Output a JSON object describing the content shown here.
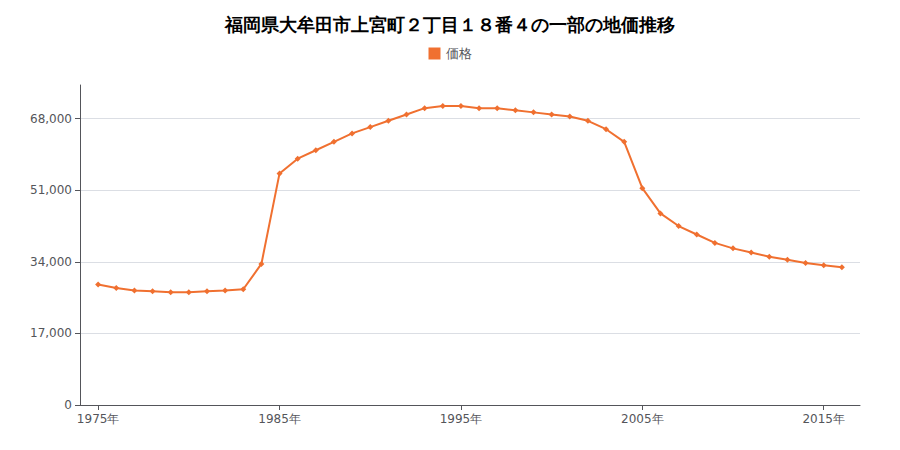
{
  "chart_data": {
    "type": "line",
    "title": "福岡県大牟田市上宮町２丁目１８番４の一部の地価推移",
    "x": [
      1975,
      1976,
      1977,
      1978,
      1979,
      1980,
      1981,
      1982,
      1983,
      1984,
      1985,
      1986,
      1987,
      1988,
      1989,
      1990,
      1991,
      1992,
      1993,
      1994,
      1995,
      1996,
      1997,
      1998,
      1999,
      2000,
      2001,
      2002,
      2003,
      2004,
      2005,
      2006,
      2007,
      2008,
      2009,
      2010,
      2011,
      2012,
      2013,
      2014,
      2015,
      2016
    ],
    "series": [
      {
        "name": "価格",
        "color": "#F07030",
        "marker": "diamond",
        "values": [
          28600,
          27800,
          27200,
          27000,
          26800,
          26800,
          27000,
          27200,
          27500,
          33500,
          55000,
          58500,
          60500,
          62500,
          64500,
          66000,
          67500,
          69000,
          70500,
          71000,
          71000,
          70500,
          70500,
          70000,
          69500,
          69000,
          68500,
          67500,
          65500,
          62500,
          51500,
          45500,
          42500,
          40500,
          38500,
          37200,
          36200,
          35200,
          34500,
          33700,
          33200,
          32700
        ]
      }
    ],
    "xlim": [
      1974.0,
      2017.0
    ],
    "xticks": [
      {
        "value": 1975,
        "label": "1975年"
      },
      {
        "value": 1985,
        "label": "1985年"
      },
      {
        "value": 1995,
        "label": "1995年"
      },
      {
        "value": 2005,
        "label": "2005年"
      },
      {
        "value": 2015,
        "label": "2015年"
      }
    ],
    "ylim": [
      0,
      76000
    ],
    "yticks": [
      0,
      {
        "value": 17000,
        "label": "17,000"
      },
      {
        "value": 34000,
        "label": "34,000"
      },
      {
        "value": 51000,
        "label": "51,000"
      },
      {
        "value": 68000,
        "label": "68,000"
      }
    ],
    "grid": true,
    "legend": "top"
  }
}
